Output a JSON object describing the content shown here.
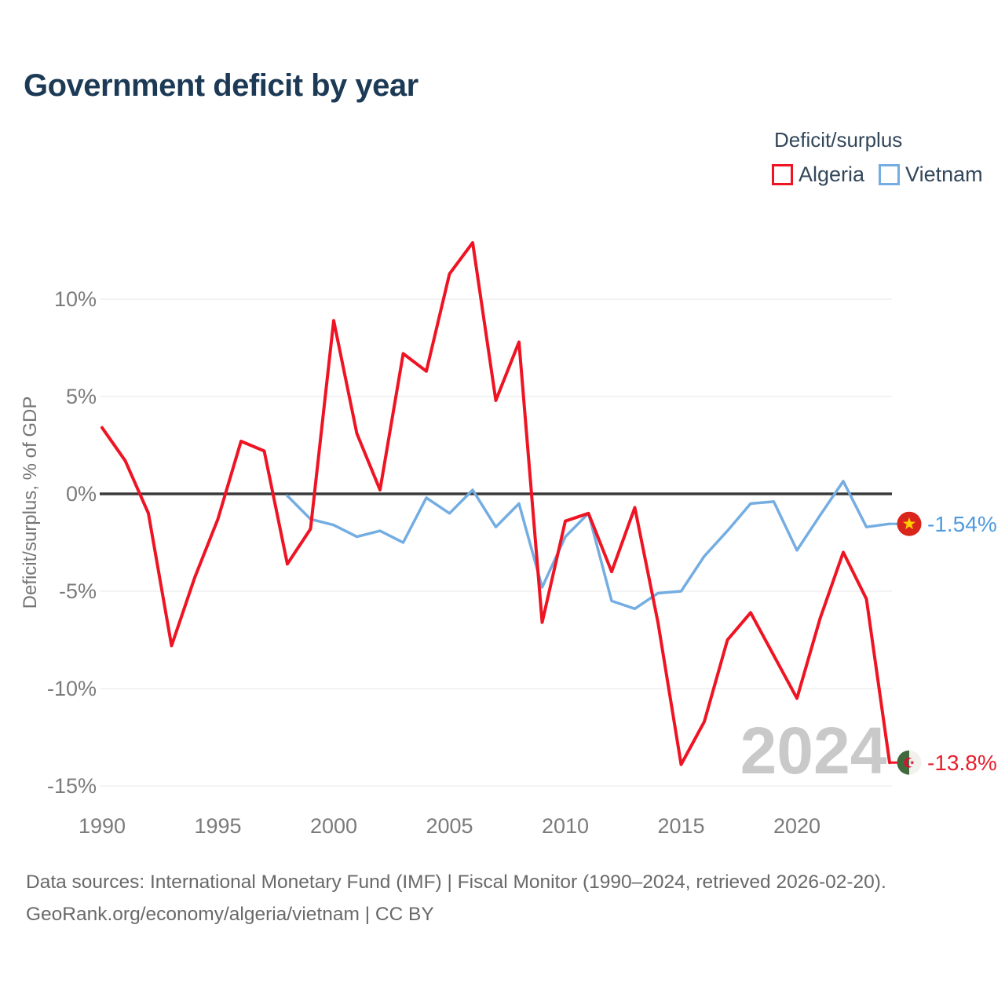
{
  "title": "Government deficit by year",
  "legend": {
    "title": "Deficit/surplus",
    "items": [
      {
        "label": "Algeria",
        "color": "#ee1423"
      },
      {
        "label": "Vietnam",
        "color": "#74ade2"
      }
    ]
  },
  "chart_data": {
    "type": "line",
    "title": "Government deficit by year",
    "ylabel": "Deficit/surplus, % of GDP",
    "xlabel": "",
    "grid": true,
    "legend_position": "top-right",
    "ylim": [
      -15.5,
      13.5
    ],
    "x": [
      1990,
      1991,
      1992,
      1993,
      1994,
      1995,
      1996,
      1997,
      1998,
      1999,
      2000,
      2001,
      2002,
      2003,
      2004,
      2005,
      2006,
      2007,
      2008,
      2009,
      2010,
      2011,
      2012,
      2013,
      2014,
      2015,
      2016,
      2017,
      2018,
      2019,
      2020,
      2021,
      2022,
      2023,
      2024
    ],
    "x_ticks": [
      1990,
      1995,
      2000,
      2005,
      2010,
      2015,
      2020
    ],
    "y_ticks": [
      {
        "label": "10%",
        "value": 10
      },
      {
        "label": "5%",
        "value": 5
      },
      {
        "label": "0%",
        "value": 0
      },
      {
        "label": "-5%",
        "value": -5
      },
      {
        "label": "-10%",
        "value": -10
      },
      {
        "label": "-15%",
        "value": -15
      }
    ],
    "series": [
      {
        "name": "Algeria",
        "color": "#ee1423",
        "values": [
          3.4,
          1.7,
          -1.0,
          -7.8,
          -4.3,
          -1.3,
          2.7,
          2.2,
          -3.6,
          -1.8,
          8.9,
          3.1,
          0.2,
          7.2,
          6.3,
          11.3,
          12.9,
          4.8,
          7.8,
          -6.6,
          -1.4,
          -1.0,
          -4.0,
          -0.7,
          -6.6,
          -13.9,
          -11.7,
          -7.5,
          -6.1,
          -8.3,
          -10.5,
          -6.4,
          -3.0,
          -5.4,
          -13.8
        ]
      },
      {
        "name": "Vietnam",
        "color": "#74ade2",
        "values": [
          null,
          null,
          null,
          null,
          null,
          null,
          null,
          null,
          -0.1,
          -1.3,
          -1.6,
          -2.2,
          -1.9,
          -2.5,
          -0.2,
          -1.0,
          0.2,
          -1.7,
          -0.5,
          -4.8,
          -2.2,
          -1.0,
          -5.5,
          -5.9,
          -5.1,
          -5.0,
          -3.2,
          -1.9,
          -0.5,
          -0.4,
          -2.9,
          -1.1,
          0.65,
          -1.7,
          -1.54
        ]
      }
    ]
  },
  "end_labels": [
    {
      "series": "Vietnam",
      "label": "-1.54%",
      "text_color": "#4f9be0",
      "flag": "vietnam-flag"
    },
    {
      "series": "Algeria",
      "label": "-13.8%",
      "text_color": "#e8202d",
      "flag": "algeria-flag"
    }
  ],
  "watermark": "2024",
  "footer": {
    "line1": "Data sources: International Monetary Fund (IMF) | Fiscal Monitor (1990–2024, retrieved 2026-02-20).",
    "line2": "GeoRank.org/economy/algeria/vietnam | CC BY"
  }
}
